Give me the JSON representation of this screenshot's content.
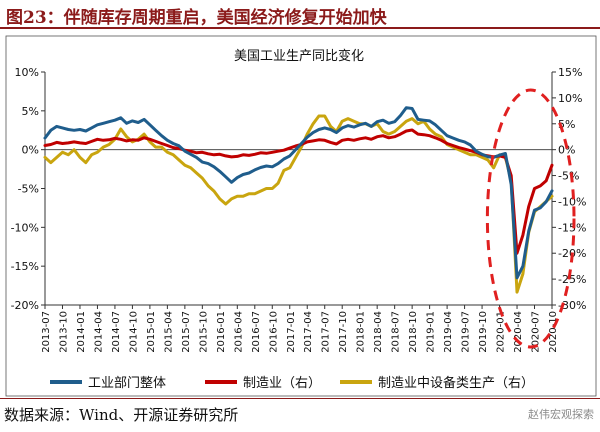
{
  "figure": {
    "title": "图23：伴随库存周期重启，美国经济修复开始加快",
    "source": "数据来源：Wind、开源证券研究所",
    "watermark": "赵伟宏观探索"
  },
  "colors": {
    "title": "#8b1a1a",
    "industry": "#1f5d8c",
    "manufacturing": "#c00000",
    "equipment": "#c9a50f",
    "highlight": "#e02020"
  },
  "chart_data": {
    "type": "line",
    "title": "美国工业生产同比变化",
    "xlabel": "",
    "ylabel": "",
    "x": [
      "2013-07",
      "2013-08",
      "2013-09",
      "2013-10",
      "2013-11",
      "2013-12",
      "2014-01",
      "2014-02",
      "2014-03",
      "2014-04",
      "2014-05",
      "2014-06",
      "2014-07",
      "2014-08",
      "2014-09",
      "2014-10",
      "2014-11",
      "2014-12",
      "2015-01",
      "2015-02",
      "2015-03",
      "2015-04",
      "2015-05",
      "2015-06",
      "2015-07",
      "2015-08",
      "2015-09",
      "2015-10",
      "2015-11",
      "2015-12",
      "2016-01",
      "2016-02",
      "2016-03",
      "2016-04",
      "2016-05",
      "2016-06",
      "2016-07",
      "2016-08",
      "2016-09",
      "2016-10",
      "2016-11",
      "2016-12",
      "2017-01",
      "2017-02",
      "2017-03",
      "2017-04",
      "2017-05",
      "2017-06",
      "2017-07",
      "2017-08",
      "2017-09",
      "2017-10",
      "2017-11",
      "2017-12",
      "2018-01",
      "2018-02",
      "2018-03",
      "2018-04",
      "2018-05",
      "2018-06",
      "2018-07",
      "2018-08",
      "2018-09",
      "2018-10",
      "2018-11",
      "2018-12",
      "2019-01",
      "2019-02",
      "2019-03",
      "2019-04",
      "2019-05",
      "2019-06",
      "2019-07",
      "2019-08",
      "2019-09",
      "2019-10",
      "2019-11",
      "2019-12",
      "2020-01",
      "2020-02",
      "2020-03",
      "2020-04",
      "2020-05",
      "2020-06",
      "2020-07",
      "2020-08",
      "2020-09",
      "2020-10"
    ],
    "x_ticks": [
      "2013-07",
      "2013-10",
      "2014-01",
      "2014-04",
      "2014-07",
      "2014-10",
      "2015-01",
      "2015-04",
      "2015-07",
      "2015-10",
      "2016-01",
      "2016-04",
      "2016-07",
      "2016-10",
      "2017-01",
      "2017-04",
      "2017-07",
      "2017-10",
      "2018-01",
      "2018-04",
      "2018-07",
      "2018-10",
      "2019-01",
      "2019-04",
      "2019-07",
      "2019-10",
      "2020-01",
      "2020-04",
      "2020-07",
      "2020-10"
    ],
    "y_left": {
      "ylim": [
        -20,
        10
      ],
      "ticks": [
        "10%",
        "5%",
        "0%",
        "-5%",
        "-10%",
        "-15%",
        "-20%"
      ],
      "tick_values": [
        10,
        5,
        0,
        -5,
        -10,
        -15,
        -20
      ]
    },
    "y_right": {
      "ylim": [
        -30,
        15
      ],
      "ticks": [
        "15%",
        "10%",
        "5%",
        "0%",
        "-5%",
        "-10%",
        "-15%",
        "-20%",
        "-25%",
        "-30%"
      ],
      "tick_values": [
        15,
        10,
        5,
        0,
        -5,
        -10,
        -15,
        -20,
        -25,
        -30
      ]
    },
    "series": [
      {
        "name": "工业部门整体",
        "axis": "left",
        "color": "#1f5d8c",
        "values": [
          1.5,
          2.5,
          3.0,
          2.8,
          2.6,
          2.5,
          2.6,
          2.4,
          2.8,
          3.2,
          3.4,
          3.6,
          3.8,
          4.1,
          3.4,
          3.7,
          3.5,
          3.9,
          3.2,
          2.5,
          1.8,
          1.2,
          0.8,
          0.5,
          -0.2,
          -0.6,
          -1.0,
          -1.6,
          -1.8,
          -2.2,
          -2.8,
          -3.5,
          -4.2,
          -3.6,
          -3.2,
          -3.0,
          -2.6,
          -2.3,
          -2.1,
          -2.2,
          -1.8,
          -1.2,
          -0.8,
          0.0,
          0.8,
          1.6,
          2.2,
          2.6,
          2.8,
          2.6,
          2.2,
          2.8,
          3.1,
          2.9,
          3.2,
          3.4,
          3.0,
          3.6,
          3.8,
          3.4,
          3.6,
          4.4,
          5.4,
          5.3,
          3.9,
          3.8,
          3.7,
          3.2,
          2.5,
          1.8,
          1.5,
          1.2,
          1.0,
          0.6,
          -0.2,
          -0.6,
          -0.9,
          -1.0,
          -0.7,
          -0.5,
          -4.5,
          -16.5,
          -15.0,
          -10.5,
          -7.8,
          -7.5,
          -6.7,
          -5.3
        ]
      },
      {
        "name": "制造业（右）",
        "axis": "right",
        "color": "#c00000",
        "values": [
          0.8,
          1.0,
          1.4,
          1.2,
          1.3,
          1.5,
          1.3,
          1.2,
          1.6,
          2.0,
          1.8,
          1.9,
          2.2,
          2.0,
          1.7,
          1.9,
          1.8,
          2.3,
          2.0,
          1.6,
          1.2,
          0.8,
          0.4,
          0.2,
          -0.1,
          -0.3,
          -0.6,
          -0.5,
          -0.8,
          -1.0,
          -0.9,
          -1.2,
          -1.4,
          -1.3,
          -1.0,
          -1.1,
          -0.9,
          -0.6,
          -0.7,
          -0.5,
          -0.3,
          -0.1,
          0.3,
          0.7,
          1.0,
          1.5,
          1.7,
          1.9,
          1.8,
          1.4,
          1.1,
          1.8,
          2.0,
          1.8,
          2.1,
          2.3,
          2.0,
          2.5,
          2.7,
          2.3,
          2.5,
          3.0,
          3.6,
          3.8,
          3.0,
          2.9,
          2.7,
          2.3,
          1.8,
          1.2,
          0.8,
          0.4,
          0.1,
          -0.2,
          -0.5,
          -1.0,
          -1.2,
          -1.4,
          -1.2,
          -1.5,
          -5.0,
          -20.0,
          -16.5,
          -11.0,
          -7.5,
          -7.0,
          -6.0,
          -3.0
        ]
      },
      {
        "name": "制造业中设备类生产（右）",
        "axis": "right",
        "color": "#c9a50f",
        "values": [
          -1.5,
          -2.5,
          -1.5,
          -0.5,
          -1.0,
          0.0,
          -1.5,
          -2.5,
          -1.0,
          -0.5,
          0.5,
          1.0,
          2.0,
          4.0,
          2.5,
          1.5,
          2.0,
          3.0,
          1.5,
          0.5,
          0.5,
          -0.5,
          -1.0,
          -2.0,
          -3.0,
          -3.5,
          -4.5,
          -5.5,
          -7.0,
          -8.0,
          -9.5,
          -10.5,
          -9.5,
          -9.0,
          -9.0,
          -8.5,
          -8.5,
          -8.0,
          -7.5,
          -7.5,
          -6.5,
          -4.0,
          -3.5,
          -1.5,
          0.5,
          3.0,
          5.0,
          6.5,
          6.5,
          4.5,
          3.5,
          5.5,
          6.0,
          5.5,
          5.0,
          5.0,
          4.5,
          5.0,
          3.5,
          3.0,
          3.5,
          4.5,
          5.5,
          6.0,
          5.0,
          5.5,
          4.0,
          3.0,
          2.5,
          1.0,
          0.5,
          0.0,
          -0.5,
          -1.0,
          -1.0,
          -1.5,
          -2.0,
          -3.5,
          -1.0,
          -1.5,
          -6.0,
          -27.5,
          -24.0,
          -16.0,
          -12.0,
          -11.0,
          -10.0,
          -9.0
        ]
      }
    ],
    "legend": {
      "position": "bottom",
      "entries": [
        "工业部门整体",
        "制造业（右）",
        "制造业中设备类生产（右）"
      ]
    },
    "grid": false,
    "annotation": {
      "type": "dashed-ellipse",
      "from": "2020-02",
      "to": "2020-10"
    }
  }
}
